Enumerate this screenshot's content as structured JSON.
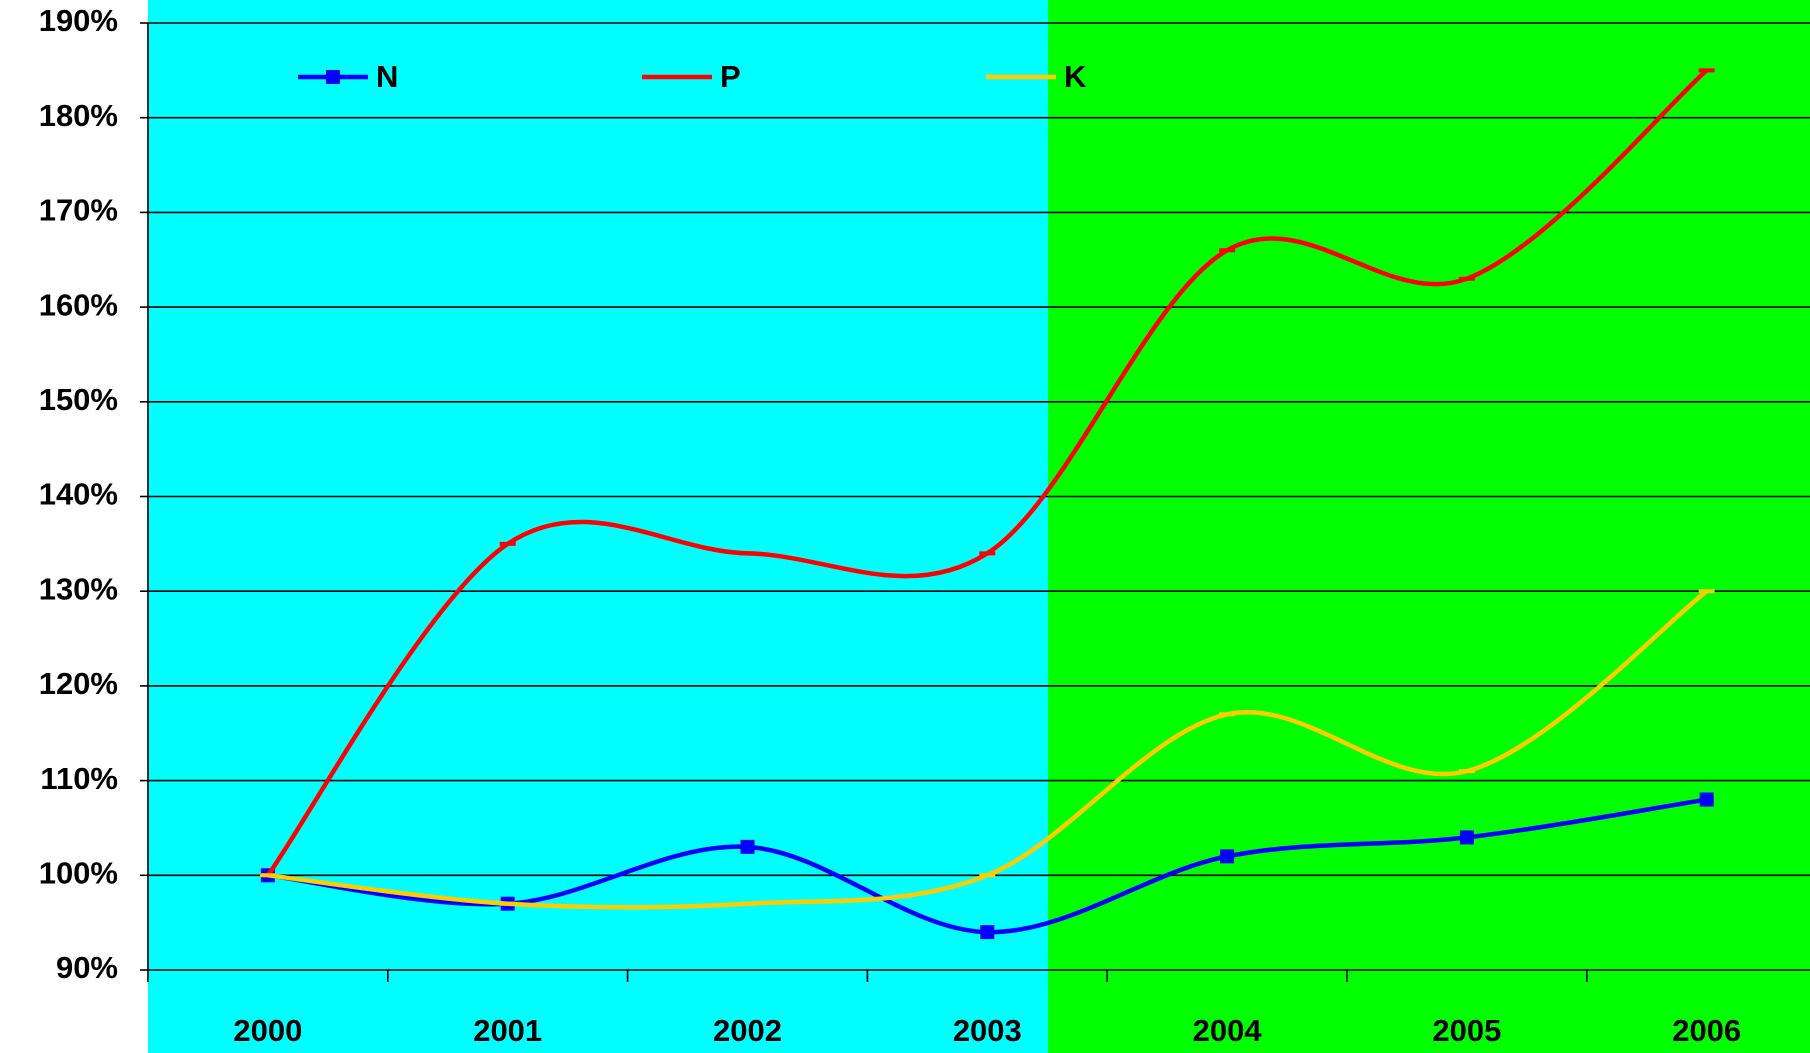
{
  "chart_data": {
    "type": "line",
    "categories": [
      "2000",
      "2001",
      "2002",
      "2003",
      "2004",
      "2005",
      "2006"
    ],
    "series": [
      {
        "name": "N",
        "color": "#0000ff",
        "marker": "square",
        "values": [
          100,
          97,
          103,
          94,
          102,
          104,
          108
        ]
      },
      {
        "name": "P",
        "color": "#ff0000",
        "marker": "dash",
        "values": [
          100,
          135,
          134,
          134,
          166,
          163,
          185
        ]
      },
      {
        "name": "K",
        "color": "#ffcc00",
        "marker": "dash",
        "values": [
          100,
          97,
          97,
          100,
          117,
          111,
          130
        ]
      }
    ],
    "ylim": [
      90,
      190
    ],
    "yticks": [
      {
        "value": 90,
        "label": "90%"
      },
      {
        "value": 100,
        "label": "100%"
      },
      {
        "value": 110,
        "label": "110%"
      },
      {
        "value": 120,
        "label": "120%"
      },
      {
        "value": 130,
        "label": "130%"
      },
      {
        "value": 140,
        "label": "140%"
      },
      {
        "value": 150,
        "label": "150%"
      },
      {
        "value": 160,
        "label": "160%"
      },
      {
        "value": 170,
        "label": "170%"
      },
      {
        "value": 180,
        "label": "180%"
      },
      {
        "value": 190,
        "label": "190%"
      }
    ],
    "grid": true,
    "smooth": true,
    "legend": "top"
  }
}
